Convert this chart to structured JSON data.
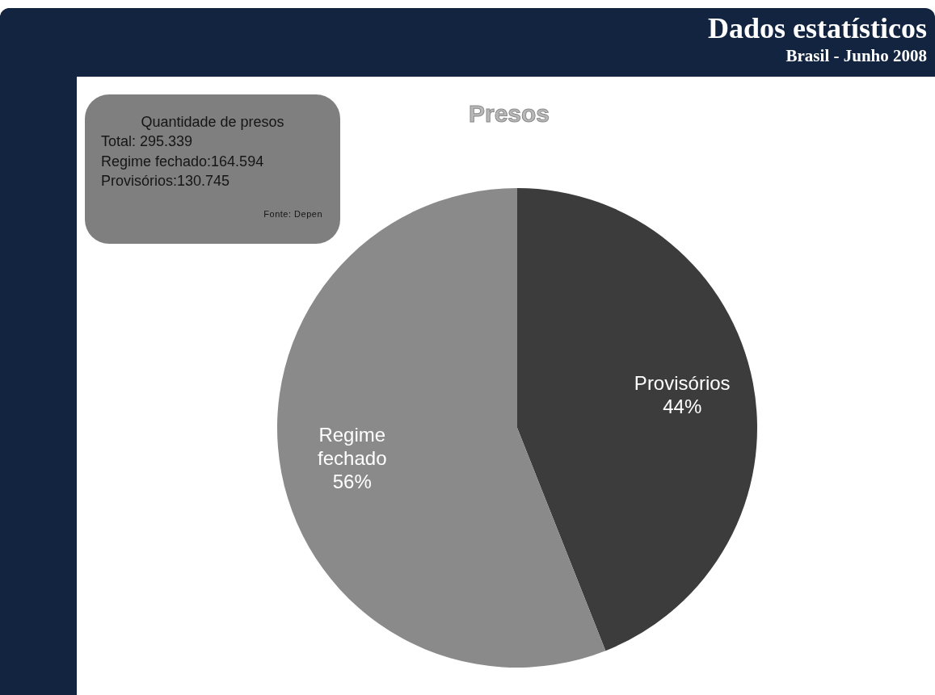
{
  "chart_data": {
    "type": "pie",
    "title": "Dados estatísticos",
    "subtitle": "Brasil - Junho 2008",
    "annotations": [
      "Presos",
      "Quantidade de presos",
      "Total: 295.339",
      "Regime fechado:164.594",
      "Provisórios:130.745",
      "Fonte: Depen"
    ],
    "categories": [
      "Provisórios",
      "Regime fechado"
    ],
    "values": [
      44,
      56
    ],
    "colors": [
      "#3c3c3c",
      "#8a8a8a"
    ],
    "value_labels": [
      "44%",
      "56%"
    ],
    "legend": false
  }
}
